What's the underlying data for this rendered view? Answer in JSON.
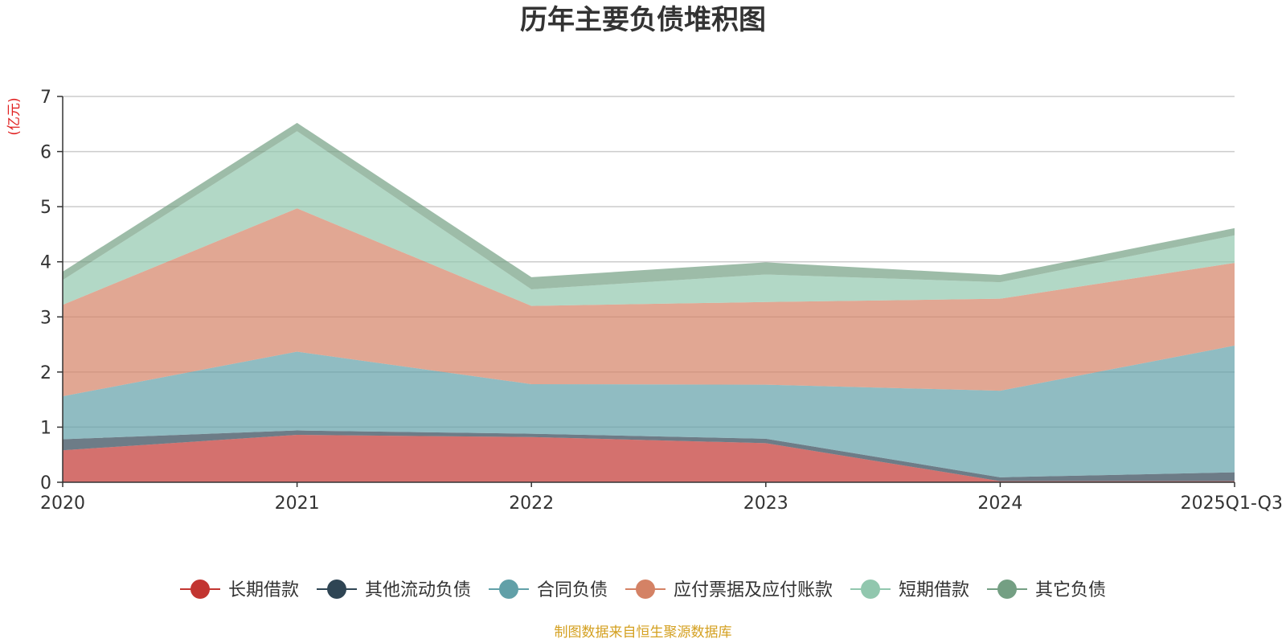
{
  "chart_data": {
    "type": "area",
    "stacked": true,
    "title": "历年主要负债堆积图",
    "unit_label": "(亿元)",
    "x": [
      "2020",
      "2021",
      "2022",
      "2023",
      "2024",
      "2025Q1-Q3"
    ],
    "ylim": [
      0,
      7
    ],
    "yticks": [
      0,
      1,
      2,
      3,
      4,
      5,
      6,
      7
    ],
    "grid": true,
    "legend_position": "bottom",
    "series": [
      {
        "name": "长期借款",
        "color": "#c23531",
        "values": [
          0.58,
          0.86,
          0.82,
          0.71,
          0.02,
          0.02
        ]
      },
      {
        "name": "其他流动负债",
        "color": "#2f4554",
        "values": [
          0.2,
          0.08,
          0.06,
          0.08,
          0.07,
          0.16
        ]
      },
      {
        "name": "合同负债",
        "color": "#61a0a8",
        "values": [
          0.78,
          1.43,
          0.9,
          0.98,
          1.57,
          2.3
        ]
      },
      {
        "name": "应付票据及应付账款",
        "color": "#d48265",
        "values": [
          1.66,
          2.6,
          1.42,
          1.5,
          1.67,
          1.5
        ]
      },
      {
        "name": "短期借款",
        "color": "#91c7ae",
        "values": [
          0.45,
          1.4,
          0.3,
          0.5,
          0.3,
          0.5
        ]
      },
      {
        "name": "其它负债",
        "color": "#749f83",
        "values": [
          0.15,
          0.15,
          0.22,
          0.22,
          0.13,
          0.13
        ]
      }
    ],
    "source_note": "制图数据来自恒生聚源数据库",
    "source_color": "#d4a020",
    "unit_color": "#e02020"
  }
}
